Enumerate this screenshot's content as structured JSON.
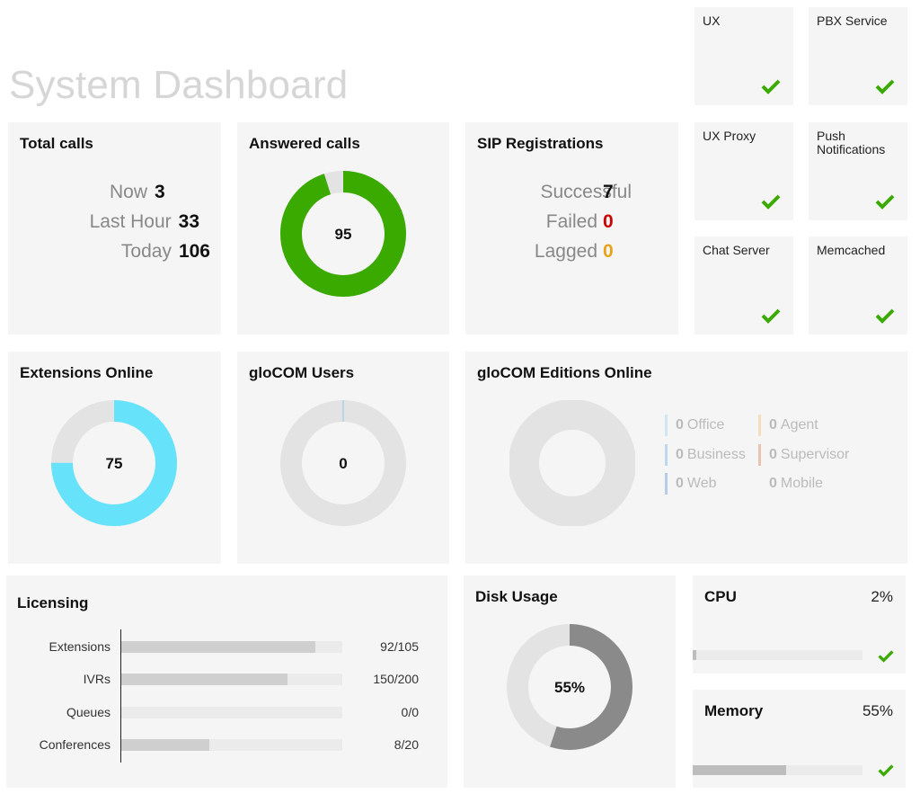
{
  "page": {
    "title": "System Dashboard"
  },
  "services": [
    {
      "name": "UX",
      "status": "ok"
    },
    {
      "name": "PBX Service",
      "status": "ok"
    },
    {
      "name": "UX Proxy",
      "status": "ok"
    },
    {
      "name": "Push\nNotifications",
      "status": "ok"
    },
    {
      "name": "Chat Server",
      "status": "ok"
    },
    {
      "name": "Memcached",
      "status": "ok"
    }
  ],
  "total_calls": {
    "title": "Total calls",
    "rows": [
      {
        "label": "Now",
        "value": "3"
      },
      {
        "label": "Last Hour",
        "value": "33"
      },
      {
        "label": "Today",
        "value": "106"
      }
    ]
  },
  "answered_calls": {
    "title": "Answered calls",
    "value": "95",
    "fraction": 0.95,
    "color": "#3aaa00",
    "track": "#e3e3e3"
  },
  "sip": {
    "title": "SIP Registrations",
    "rows": [
      {
        "label": "Successful",
        "value": "7",
        "color": "#111111"
      },
      {
        "label": "Failed",
        "value": "0",
        "color": "#cc0000"
      },
      {
        "label": "Lagged",
        "value": "0",
        "color": "#e8a317"
      }
    ]
  },
  "extensions_online": {
    "title": "Extensions Online",
    "value": "75",
    "fraction": 0.75,
    "color": "#66e3fa",
    "track": "#e3e3e3"
  },
  "glocom_users": {
    "title": "gloCOM Users",
    "value": "0",
    "fraction": 0,
    "color": "#8ec8e8",
    "track": "#e3e3e3"
  },
  "editions": {
    "title": "gloCOM Editions Online",
    "items": [
      {
        "count": "0",
        "label": "Office",
        "color": "#cfe6f5"
      },
      {
        "count": "0",
        "label": "Agent",
        "color": "#f7dcc0"
      },
      {
        "count": "0",
        "label": "Business",
        "color": "#bcd9ef"
      },
      {
        "count": "0",
        "label": "Supervisor",
        "color": "#e9c2b0"
      },
      {
        "count": "0",
        "label": "Web",
        "color": "#b4cde8"
      },
      {
        "count": "0",
        "label": "Mobile",
        "color": "#f5f5f5"
      }
    ]
  },
  "licensing": {
    "title": "Licensing",
    "rows": [
      {
        "label": "Extensions",
        "used": 92,
        "total": 105,
        "text": "92/105"
      },
      {
        "label": "IVRs",
        "used": 150,
        "total": 200,
        "text": "150/200"
      },
      {
        "label": "Queues",
        "used": 0,
        "total": 0,
        "text": "0/0"
      },
      {
        "label": "Conferences",
        "used": 8,
        "total": 20,
        "text": "8/20"
      }
    ]
  },
  "disk": {
    "title": "Disk Usage",
    "value": "55%",
    "fraction": 0.55,
    "color": "#8a8a8a",
    "track": "#e3e3e3"
  },
  "cpu": {
    "title": "CPU",
    "value": "2%",
    "fraction": 0.02,
    "status": "ok"
  },
  "memory": {
    "title": "Memory",
    "value": "55%",
    "fraction": 0.55,
    "status": "ok"
  },
  "colors": {
    "check": "#3aaa00",
    "card_bg": "#f5f5f5"
  }
}
